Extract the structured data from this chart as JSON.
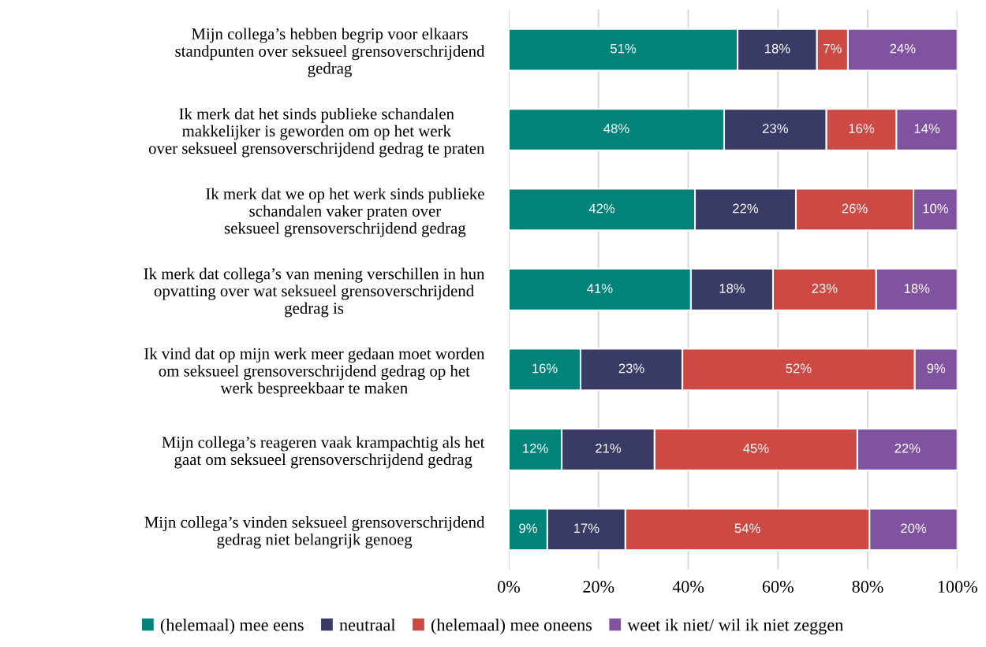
{
  "chart_data": {
    "type": "bar",
    "orientation": "horizontal",
    "stacked": true,
    "categories": [
      "Mijn collega’s hebben begrip voor elkaars\nstandpunten over seksueel grensoverschrijdend\ngedrag",
      "Ik merk dat het sinds publieke schandalen\nmakkelijker is geworden om op het werk\nover seksueel grensoverschrijdend gedrag te praten",
      "Ik merk dat we op het werk sinds publieke\nschandalen vaker praten over\nseksueel grensoverschrijdend gedrag",
      "Ik merk dat collega’s van mening verschillen in hun\nopvatting over wat seksueel grensoverschrijdend\ngedrag is",
      "Ik vind dat op mijn werk meer gedaan moet worden\nom seksueel grensoverschrijdend gedrag op het\nwerk bespreekbaar te maken",
      "Mijn collega’s reageren vaak krampachtig als het\ngaat om seksueel grensoverschrijdend gedrag",
      "Mijn collega’s vinden seksueel grensoverschrijdend\ngedrag niet belangrijk genoeg"
    ],
    "series": [
      {
        "name": "(helemaal) mee eens",
        "color": "#00847a",
        "values": [
          51.0,
          48.0,
          41.5,
          40.6,
          16.0,
          11.8,
          8.6
        ],
        "value_labels": [
          "51%",
          "48%",
          "42%",
          "41%",
          "16%",
          "12%",
          "9%"
        ]
      },
      {
        "name": "neutraal",
        "color": "#3a3a66",
        "values": [
          17.7,
          22.8,
          22.5,
          18.3,
          22.7,
          20.7,
          17.4
        ],
        "value_labels": [
          "18%",
          "23%",
          "22%",
          "18%",
          "23%",
          "21%",
          "17%"
        ]
      },
      {
        "name": "(helemaal) mee oneens",
        "color": "#cc4a43",
        "values": [
          6.9,
          15.6,
          26.2,
          23.0,
          51.8,
          45.2,
          54.4
        ],
        "value_labels": [
          "7%",
          "16%",
          "26%",
          "23%",
          "52%",
          "45%",
          "54%"
        ]
      },
      {
        "name": "weet ik niet/ wil ik niet zeggen",
        "color": "#7f53a0",
        "values": [
          24.4,
          13.6,
          9.8,
          18.1,
          9.5,
          22.3,
          19.6
        ],
        "value_labels": [
          "24%",
          "14%",
          "10%",
          "18%",
          "9%",
          "22%",
          "20%"
        ]
      }
    ],
    "xlim": [
      0,
      100
    ],
    "xticks": [
      {
        "value": 0,
        "label": "0%"
      },
      {
        "value": 20,
        "label": "20%"
      },
      {
        "value": 40,
        "label": "40%"
      },
      {
        "value": 60,
        "label": "60%"
      },
      {
        "value": 80,
        "label": "80%"
      },
      {
        "value": 100,
        "label": "100%"
      }
    ],
    "grid": "x",
    "legend": "bottom"
  }
}
